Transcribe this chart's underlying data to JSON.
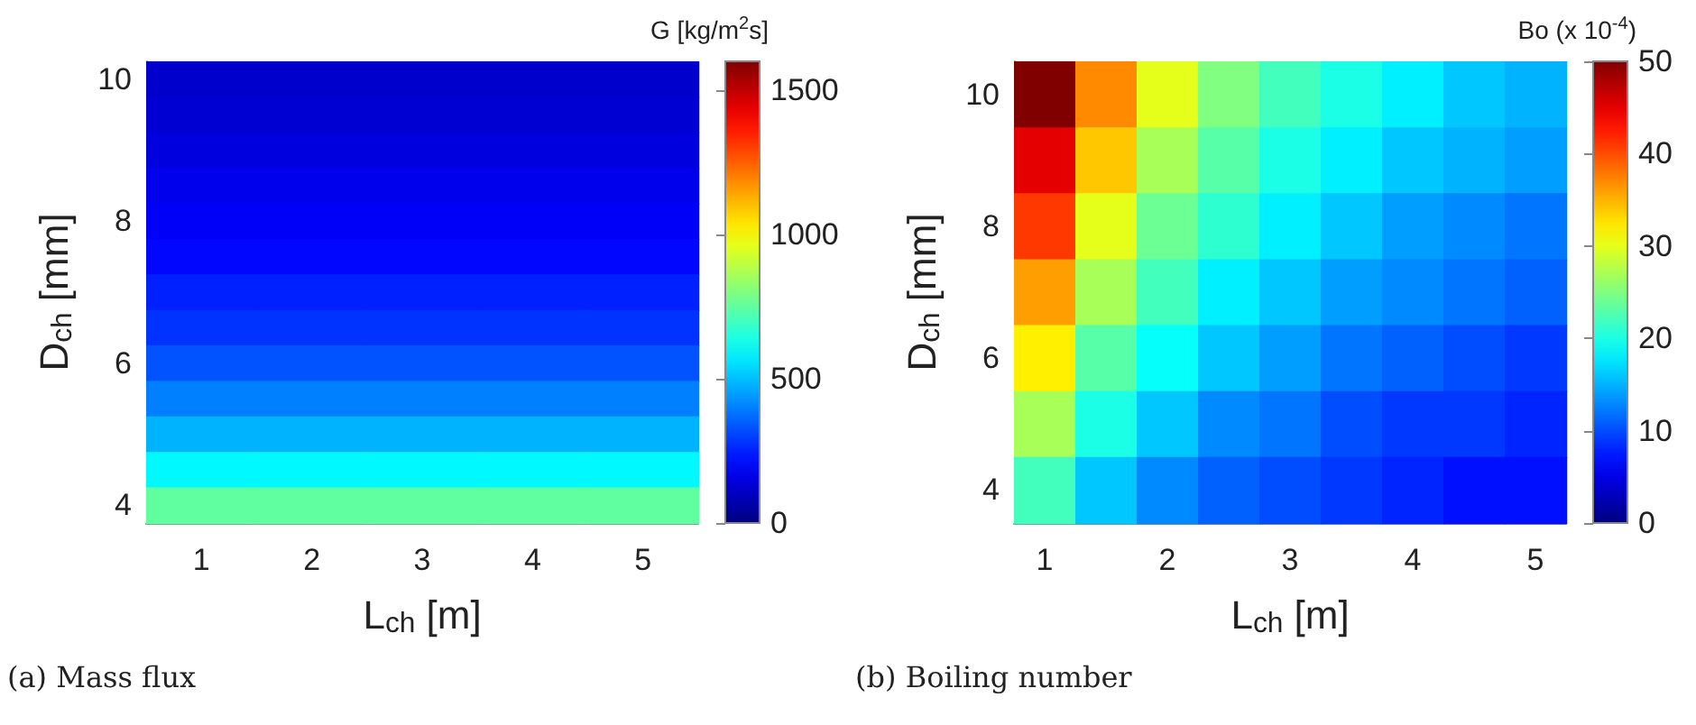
{
  "chart_data": [
    {
      "type": "heatmap",
      "xlabel": "L$_{ch}$ [m]",
      "ylabel": "D$_{ch}$ [mm]",
      "clabel": "G [kg/m$^{2}$s]",
      "annotations": [
        "(a) Mass flux"
      ],
      "categories": [
        "1",
        "2",
        "3",
        "4",
        "5"
      ],
      "y_categories": [
        "10",
        null,
        null,
        null,
        "8",
        null,
        null,
        null,
        "6",
        null,
        null,
        null,
        "4"
      ],
      "clim": [
        0,
        1600
      ],
      "cticks": [
        0,
        500,
        1000,
        1500
      ],
      "cells": [
        [
          120,
          120,
          120,
          120,
          120
        ],
        [
          130,
          130,
          130,
          130,
          130
        ],
        [
          150,
          150,
          150,
          150,
          150
        ],
        [
          170,
          170,
          170,
          170,
          170
        ],
        [
          190,
          190,
          190,
          190,
          190
        ],
        [
          210,
          210,
          210,
          210,
          210
        ],
        [
          250,
          250,
          250,
          250,
          250
        ],
        [
          280,
          280,
          280,
          280,
          280
        ],
        [
          330,
          330,
          330,
          330,
          330
        ],
        [
          400,
          400,
          400,
          400,
          400
        ],
        [
          480,
          480,
          480,
          480,
          480
        ],
        [
          590,
          590,
          590,
          590,
          590
        ],
        [
          750,
          750,
          750,
          750,
          750
        ]
      ]
    },
    {
      "type": "heatmap",
      "xlabel": "L$_{ch}$ [m]",
      "ylabel": "D$_{ch}$ [mm]",
      "clabel": "Bo (x 10$^{-4}$)",
      "annotations": [
        "(b) Boiling number"
      ],
      "categories": [
        "1",
        null,
        "2",
        null,
        "3",
        null,
        "4",
        null,
        "5"
      ],
      "y_categories": [
        "10",
        null,
        "8",
        null,
        "6",
        null,
        "4"
      ],
      "clim": [
        0,
        50
      ],
      "cticks": [
        0,
        10,
        20,
        30,
        40,
        50
      ],
      "cells": [
        [
          50,
          37,
          30,
          25,
          22,
          20,
          18,
          16,
          15
        ],
        [
          45,
          34,
          27,
          23,
          20,
          18,
          16,
          15,
          14
        ],
        [
          41,
          30,
          24,
          21,
          18,
          16,
          14,
          13,
          12
        ],
        [
          36,
          27,
          22,
          18,
          16,
          14,
          13,
          12,
          11
        ],
        [
          32,
          23,
          19,
          16,
          14,
          12,
          11,
          10,
          9
        ],
        [
          27,
          20,
          16,
          13,
          12,
          10,
          9,
          9,
          8
        ],
        [
          22,
          16,
          13,
          11,
          10,
          9,
          8,
          7,
          7
        ]
      ]
    }
  ]
}
